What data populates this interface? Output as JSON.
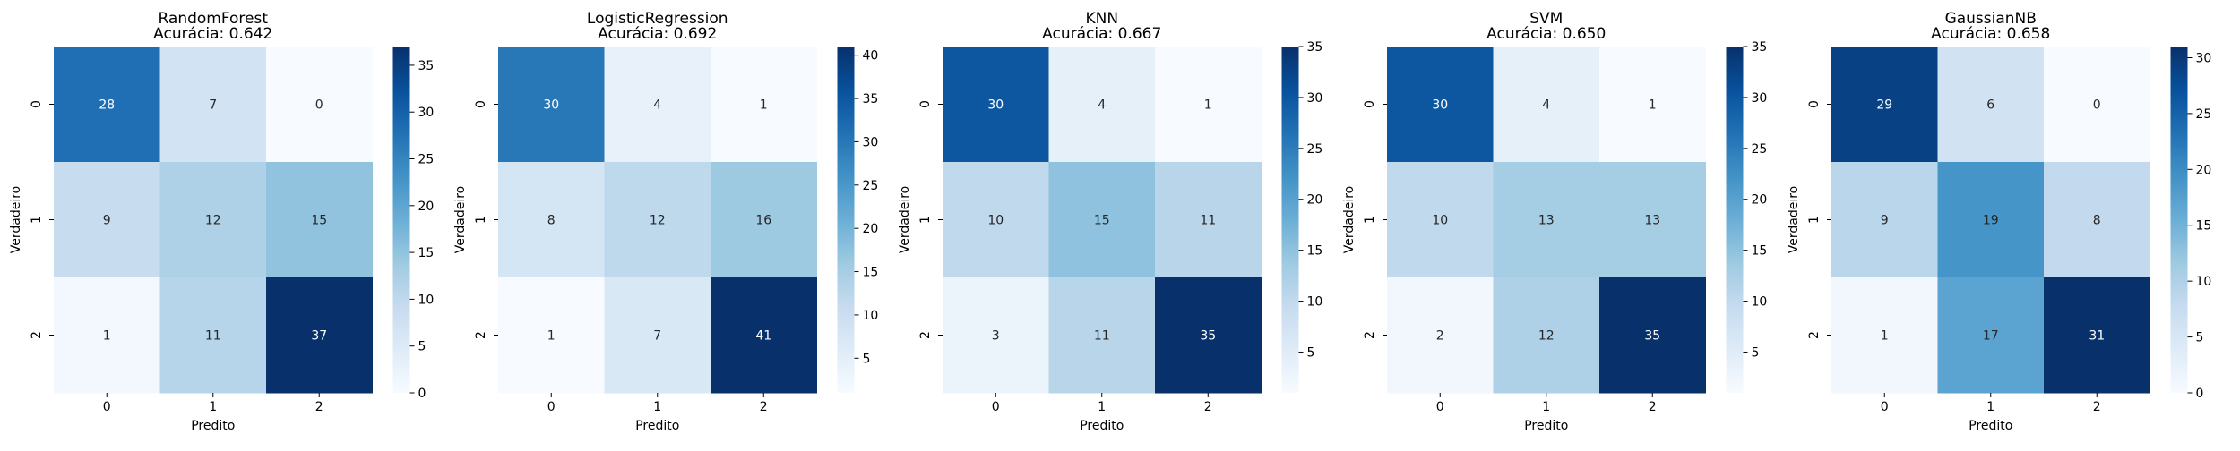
{
  "chart_data": [
    {
      "type": "heatmap",
      "title": "RandomForest",
      "subtitle": "Acurácia: 0.642",
      "xlabel": "Predito",
      "ylabel": "Verdadeiro",
      "x_categories": [
        "0",
        "1",
        "2"
      ],
      "y_categories": [
        "0",
        "1",
        "2"
      ],
      "values": [
        [
          28,
          7,
          0
        ],
        [
          9,
          12,
          15
        ],
        [
          1,
          11,
          37
        ]
      ],
      "colorbar": {
        "min": 0,
        "max": 37,
        "ticks": [
          0,
          5,
          10,
          15,
          20,
          25,
          30,
          35
        ]
      },
      "colormap": "Blues"
    },
    {
      "type": "heatmap",
      "title": "LogisticRegression",
      "subtitle": "Acurácia: 0.692",
      "xlabel": "Predito",
      "ylabel": "Verdadeiro",
      "x_categories": [
        "0",
        "1",
        "2"
      ],
      "y_categories": [
        "0",
        "1",
        "2"
      ],
      "values": [
        [
          30,
          4,
          1
        ],
        [
          8,
          12,
          16
        ],
        [
          1,
          7,
          41
        ]
      ],
      "colorbar": {
        "min": 1,
        "max": 41,
        "ticks": [
          5,
          10,
          15,
          20,
          25,
          30,
          35,
          40
        ]
      },
      "colormap": "Blues"
    },
    {
      "type": "heatmap",
      "title": "KNN",
      "subtitle": "Acurácia: 0.667",
      "xlabel": "Predito",
      "ylabel": "Verdadeiro",
      "x_categories": [
        "0",
        "1",
        "2"
      ],
      "y_categories": [
        "0",
        "1",
        "2"
      ],
      "values": [
        [
          30,
          4,
          1
        ],
        [
          10,
          15,
          11
        ],
        [
          3,
          11,
          35
        ]
      ],
      "colorbar": {
        "min": 1,
        "max": 35,
        "ticks": [
          5,
          10,
          15,
          20,
          25,
          30,
          35
        ]
      },
      "colormap": "Blues"
    },
    {
      "type": "heatmap",
      "title": "SVM",
      "subtitle": "Acurácia: 0.650",
      "xlabel": "Predito",
      "ylabel": "Verdadeiro",
      "x_categories": [
        "0",
        "1",
        "2"
      ],
      "y_categories": [
        "0",
        "1",
        "2"
      ],
      "values": [
        [
          30,
          4,
          1
        ],
        [
          10,
          13,
          13
        ],
        [
          2,
          12,
          35
        ]
      ],
      "colorbar": {
        "min": 1,
        "max": 35,
        "ticks": [
          5,
          10,
          15,
          20,
          25,
          30,
          35
        ]
      },
      "colormap": "Blues"
    },
    {
      "type": "heatmap",
      "title": "GaussianNB",
      "subtitle": "Acurácia: 0.658",
      "xlabel": "Predito",
      "ylabel": "Verdadeiro",
      "x_categories": [
        "0",
        "1",
        "2"
      ],
      "y_categories": [
        "0",
        "1",
        "2"
      ],
      "values": [
        [
          29,
          6,
          0
        ],
        [
          9,
          19,
          8
        ],
        [
          1,
          17,
          31
        ]
      ],
      "colorbar": {
        "min": 0,
        "max": 31,
        "ticks": [
          0,
          5,
          10,
          15,
          20,
          25,
          30
        ]
      },
      "colormap": "Blues"
    }
  ]
}
